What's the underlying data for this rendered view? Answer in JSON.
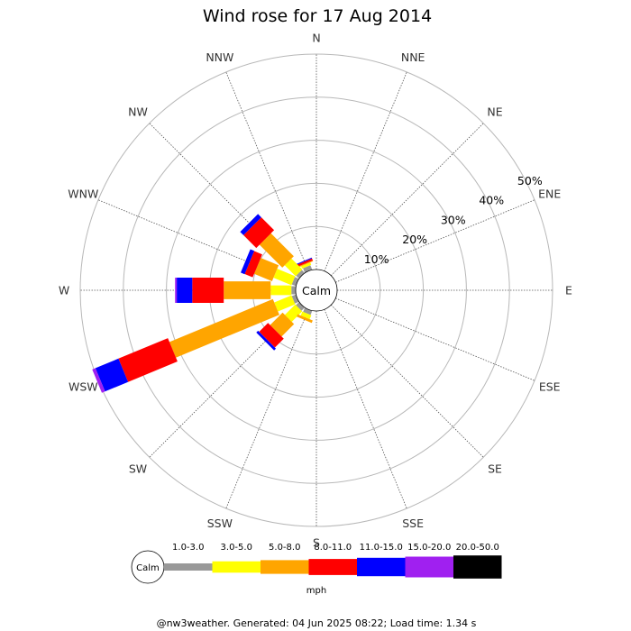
{
  "chart_data": {
    "type": "wind-rose",
    "title": "Wind rose for 17 Aug 2014",
    "center_label": "Calm",
    "directions": [
      "N",
      "NNE",
      "NE",
      "ENE",
      "E",
      "ESE",
      "SE",
      "SSE",
      "S",
      "SSW",
      "SW",
      "WSW",
      "W",
      "WNW",
      "NW",
      "NNW"
    ],
    "ring_labels": [
      "10%",
      "20%",
      "30%",
      "40%",
      "50%"
    ],
    "rings": [
      10,
      20,
      30,
      40,
      50
    ],
    "radial_max": 50,
    "unit": "mph",
    "legend": {
      "calm_label": "Calm",
      "unit_label": "mph",
      "bins": [
        {
          "label": "1.0-3.0",
          "color": "#999999"
        },
        {
          "label": "3.0-5.0",
          "color": "#ffff00"
        },
        {
          "label": "5.0-8.0",
          "color": "#ffa500"
        },
        {
          "label": "8.0-11.0",
          "color": "#ff0000"
        },
        {
          "label": "11.0-15.0",
          "color": "#0000ff"
        },
        {
          "label": "15.0-20.0",
          "color": "#a020f0"
        },
        {
          "label": "20.0-50.0",
          "color": "#000000"
        }
      ]
    },
    "series": [
      {
        "direction": "NNW",
        "cumulative_percent": [
          1.1,
          1.7,
          1.9,
          2.4,
          2.6,
          2.6,
          2.6
        ]
      },
      {
        "direction": "NW",
        "cumulative_percent": [
          0.9,
          4.5,
          12.0,
          16.2,
          17.3,
          17.3,
          17.3
        ]
      },
      {
        "direction": "WNW",
        "cumulative_percent": [
          1.0,
          5.5,
          10.0,
          12.0,
          13.0,
          13.0,
          13.0
        ]
      },
      {
        "direction": "W",
        "cumulative_percent": [
          1.0,
          5.8,
          16.7,
          24.0,
          27.6,
          28.0,
          28.0
        ]
      },
      {
        "direction": "WSW",
        "cumulative_percent": [
          1.0,
          5.3,
          31.3,
          43.7,
          49.5,
          50.3,
          50.3
        ]
      },
      {
        "direction": "SW",
        "cumulative_percent": [
          1.0,
          4.4,
          8.5,
          11.4,
          12.0,
          12.0,
          12.0
        ]
      },
      {
        "direction": "SSW",
        "cumulative_percent": [
          1.0,
          2.0,
          2.6,
          2.6,
          2.6,
          2.6,
          2.6
        ]
      }
    ]
  },
  "footer": "@nw3weather. Generated: 04 Jun 2025 08:22; Load time: 1.34 s"
}
